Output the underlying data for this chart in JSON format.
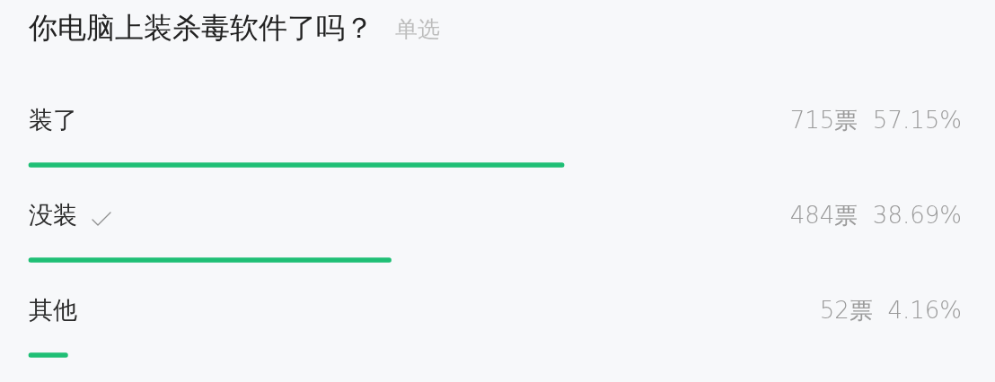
{
  "chart_data": {
    "type": "bar",
    "orientation": "horizontal",
    "title": "你电脑上装杀毒软件了吗？",
    "subtitle": "单选",
    "categories": [
      "装了",
      "没装",
      "其他"
    ],
    "values": [
      57.15,
      38.69,
      4.16
    ],
    "value_labels": [
      "715票  57.15%",
      "484票  38.69%",
      "52票  4.16%"
    ],
    "color": "#1fbf75",
    "tick_labels": "y",
    "legend": false
  }
}
